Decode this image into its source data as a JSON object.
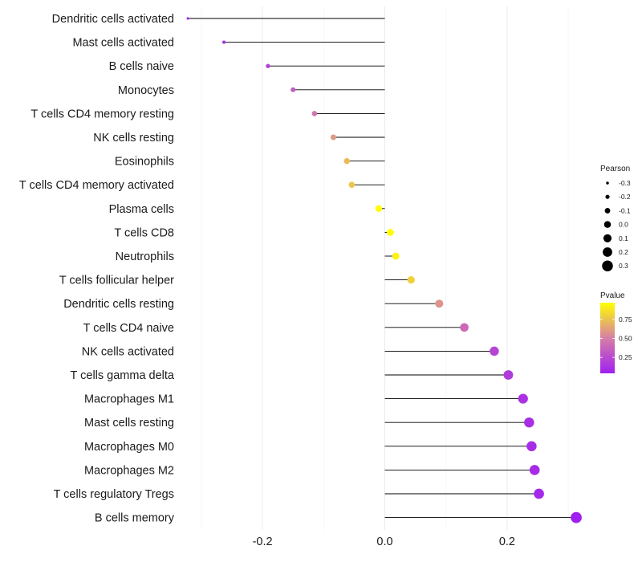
{
  "chart_data": {
    "type": "lollipop",
    "xlabel": "",
    "ylabel": "",
    "xlim": [
      -0.33,
      0.33
    ],
    "x_ticks": [
      -0.2,
      0.0,
      0.2
    ],
    "x_tick_labels": [
      "-0.2",
      "0.0",
      "0.2"
    ],
    "grid": true,
    "points": [
      {
        "label": "Dendritic cells activated",
        "pearson": -0.322,
        "pvalue": 0.07
      },
      {
        "label": "Mast cells activated",
        "pearson": -0.263,
        "pvalue": 0.12
      },
      {
        "label": "B cells naive",
        "pearson": -0.191,
        "pvalue": 0.2
      },
      {
        "label": "Monocytes",
        "pearson": -0.15,
        "pvalue": 0.33
      },
      {
        "label": "T cells CD4 memory resting",
        "pearson": -0.115,
        "pvalue": 0.45
      },
      {
        "label": "NK cells resting",
        "pearson": -0.084,
        "pvalue": 0.6
      },
      {
        "label": "Eosinophils",
        "pearson": -0.062,
        "pvalue": 0.72
      },
      {
        "label": "T cells CD4 memory activated",
        "pearson": -0.054,
        "pvalue": 0.76
      },
      {
        "label": "Plasma cells",
        "pearson": -0.01,
        "pvalue": 0.97
      },
      {
        "label": "T cells CD8",
        "pearson": 0.009,
        "pvalue": 0.97
      },
      {
        "label": "Neutrophils",
        "pearson": 0.018,
        "pvalue": 0.93
      },
      {
        "label": "T cells follicular helper",
        "pearson": 0.043,
        "pvalue": 0.8
      },
      {
        "label": "Dendritic cells resting",
        "pearson": 0.089,
        "pvalue": 0.58
      },
      {
        "label": "T cells CD4 naive",
        "pearson": 0.13,
        "pvalue": 0.4
      },
      {
        "label": "NK cells activated",
        "pearson": 0.179,
        "pvalue": 0.22
      },
      {
        "label": "T cells gamma delta",
        "pearson": 0.202,
        "pvalue": 0.17
      },
      {
        "label": "Macrophages M1",
        "pearson": 0.226,
        "pvalue": 0.13
      },
      {
        "label": "Mast cells resting",
        "pearson": 0.236,
        "pvalue": 0.11
      },
      {
        "label": "Macrophages M0",
        "pearson": 0.24,
        "pvalue": 0.1
      },
      {
        "label": "Macrophages M2",
        "pearson": 0.245,
        "pvalue": 0.09
      },
      {
        "label": "T cells regulatory  Tregs",
        "pearson": 0.252,
        "pvalue": 0.08
      },
      {
        "label": "B cells memory",
        "pearson": 0.313,
        "pvalue": 0.04
      }
    ],
    "legend_size": {
      "title": "Pearson",
      "entries": [
        "-0.3",
        "-0.2",
        "-0.1",
        "0.0",
        "0.1",
        "0.2",
        "0.3"
      ],
      "values": [
        -0.3,
        -0.2,
        -0.1,
        0.0,
        0.1,
        0.2,
        0.3
      ]
    },
    "legend_color": {
      "title": "Pvalue",
      "tick_labels": [
        "0.75",
        "0.50",
        "0.25"
      ],
      "tick_values": [
        0.75,
        0.5,
        0.25
      ],
      "range": [
        0.04,
        0.97
      ],
      "colors": {
        "low": "#a020f0",
        "mid": "#d67fa6",
        "high": "#ffff00"
      }
    },
    "position": "right"
  }
}
